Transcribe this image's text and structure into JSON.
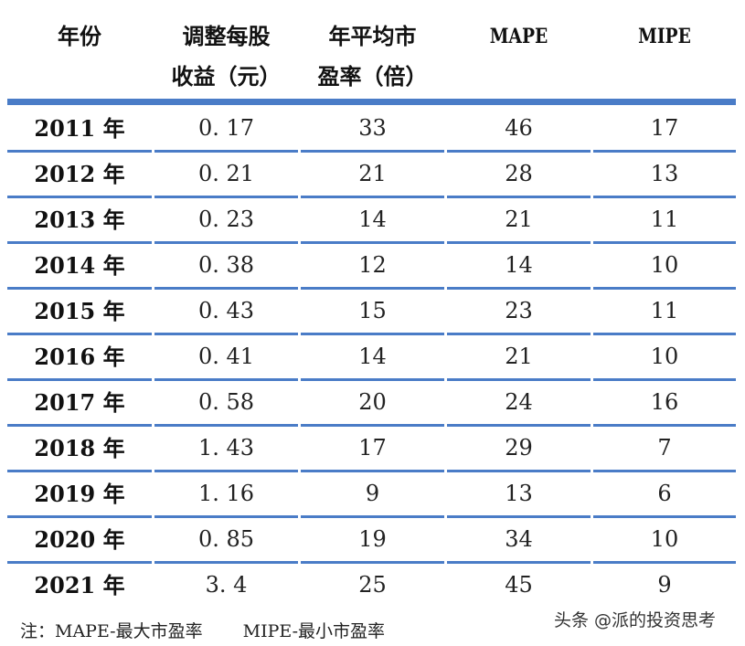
{
  "table": {
    "headers": [
      {
        "line1": "年份",
        "line2": ""
      },
      {
        "line1": "调整每股",
        "line2": "收益（元）"
      },
      {
        "line1": "年平均市",
        "line2": "盈率（倍）"
      },
      {
        "line1": "MAPE",
        "line2": ""
      },
      {
        "line1": "MIPE",
        "line2": ""
      }
    ],
    "rows": [
      {
        "year": "2011 年",
        "eps": "0. 17",
        "avg_pe": "33",
        "mape": "46",
        "mipe": "17"
      },
      {
        "year": "2012 年",
        "eps": "0. 21",
        "avg_pe": "21",
        "mape": "28",
        "mipe": "13"
      },
      {
        "year": "2013 年",
        "eps": "0. 23",
        "avg_pe": "14",
        "mape": "21",
        "mipe": "11"
      },
      {
        "year": "2014 年",
        "eps": "0. 38",
        "avg_pe": "12",
        "mape": "14",
        "mipe": "10"
      },
      {
        "year": "2015 年",
        "eps": "0. 43",
        "avg_pe": "15",
        "mape": "23",
        "mipe": "11"
      },
      {
        "year": "2016 年",
        "eps": "0. 41",
        "avg_pe": "14",
        "mape": "21",
        "mipe": "10"
      },
      {
        "year": "2017 年",
        "eps": "0. 58",
        "avg_pe": "20",
        "mape": "24",
        "mipe": "16"
      },
      {
        "year": "2018 年",
        "eps": "1. 43",
        "avg_pe": "17",
        "mape": "29",
        "mipe": "7"
      },
      {
        "year": "2019 年",
        "eps": "1. 16",
        "avg_pe": "9",
        "mape": "13",
        "mipe": "6"
      },
      {
        "year": "2020 年",
        "eps": "0. 85",
        "avg_pe": "19",
        "mape": "34",
        "mipe": "10"
      },
      {
        "year": "2021 年",
        "eps": "3. 4",
        "avg_pe": "25",
        "mape": "45",
        "mipe": "9"
      }
    ]
  },
  "note": {
    "mape": "注：MAPE-最大市盈率",
    "mipe": "MIPE-最小市盈率"
  },
  "watermark": "头条 @派的投资思考",
  "colors": {
    "rule": "#4a7cc7",
    "text": "#111111"
  }
}
